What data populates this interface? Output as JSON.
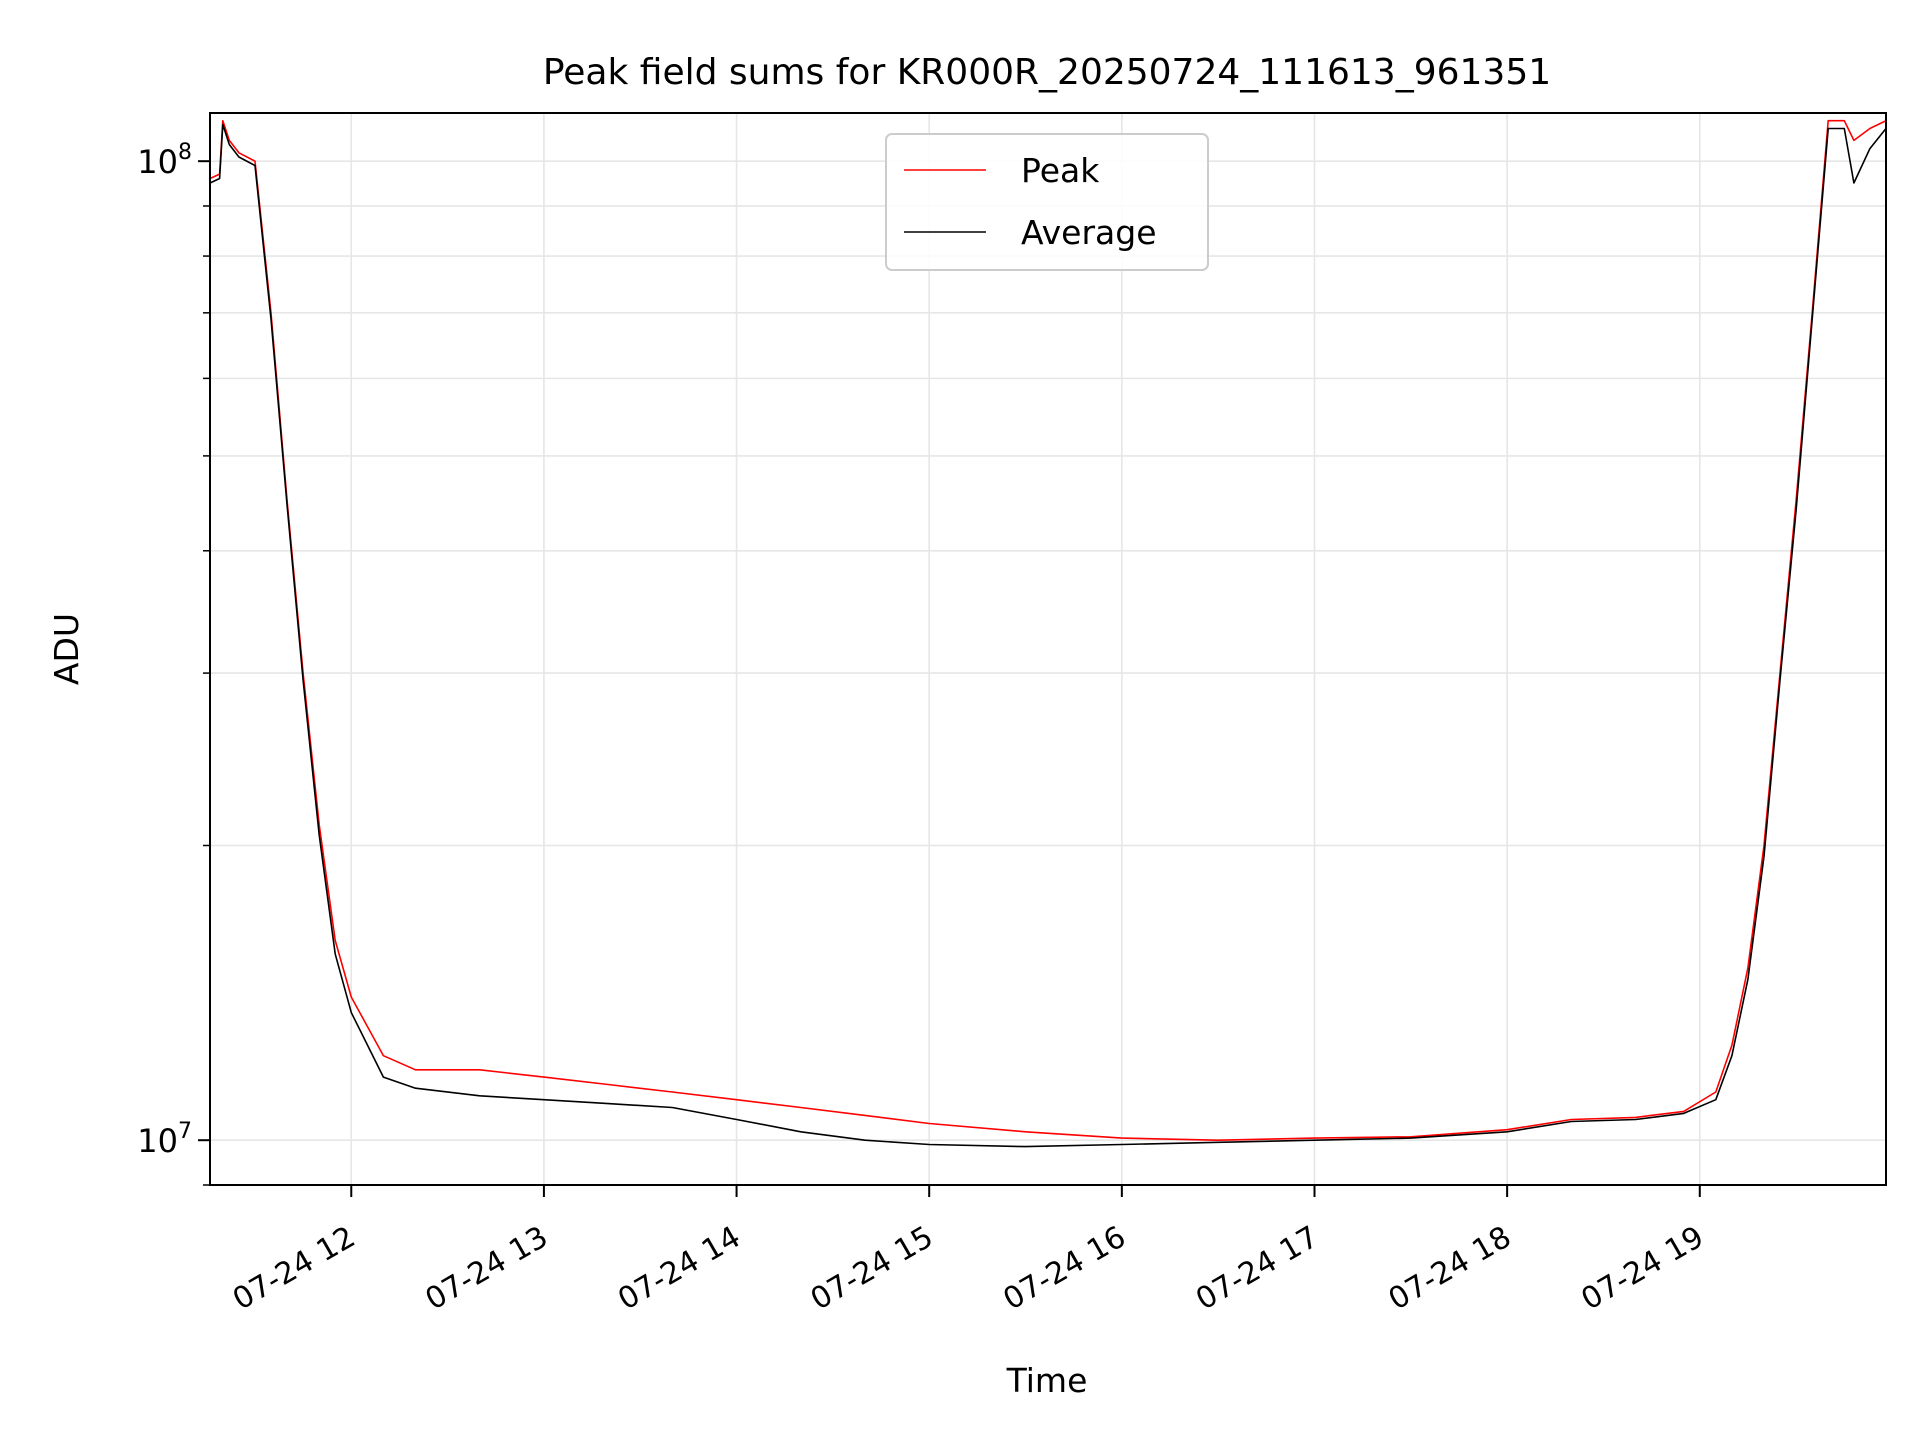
{
  "chart_data": {
    "type": "line",
    "title": "Peak field sums for KR000R_20250724_111613_961351",
    "xlabel": "Time",
    "ylabel": "ADU",
    "yscale": "log",
    "ylim": [
      9000000,
      112000000
    ],
    "xlim": [
      "2025-07-24 11:16",
      "2025-07-24 19:58"
    ],
    "grid": true,
    "legend_position": "top-center",
    "x_ticks": [
      "07-24 12",
      "07-24 13",
      "07-24 14",
      "07-24 15",
      "07-24 16",
      "07-24 17",
      "07-24 18",
      "07-24 19"
    ],
    "x_tick_times": [
      "2025-07-24 12:00",
      "2025-07-24 13:00",
      "2025-07-24 14:00",
      "2025-07-24 15:00",
      "2025-07-24 16:00",
      "2025-07-24 17:00",
      "2025-07-24 18:00",
      "2025-07-24 19:00"
    ],
    "y_ticks": [
      {
        "value": 10000000,
        "base": "10",
        "exp": "7"
      },
      {
        "value": 100000000,
        "base": "10",
        "exp": "8"
      }
    ],
    "x": [
      "2025-07-24 11:16",
      "2025-07-24 11:19",
      "2025-07-24 11:20",
      "2025-07-24 11:22",
      "2025-07-24 11:25",
      "2025-07-24 11:30",
      "2025-07-24 11:35",
      "2025-07-24 11:40",
      "2025-07-24 11:45",
      "2025-07-24 11:50",
      "2025-07-24 11:55",
      "2025-07-24 12:00",
      "2025-07-24 12:10",
      "2025-07-24 12:20",
      "2025-07-24 12:40",
      "2025-07-24 13:00",
      "2025-07-24 13:20",
      "2025-07-24 13:40",
      "2025-07-24 14:00",
      "2025-07-24 14:20",
      "2025-07-24 14:40",
      "2025-07-24 15:00",
      "2025-07-24 15:30",
      "2025-07-24 16:00",
      "2025-07-24 16:30",
      "2025-07-24 17:00",
      "2025-07-24 17:30",
      "2025-07-24 18:00",
      "2025-07-24 18:20",
      "2025-07-24 18:40",
      "2025-07-24 18:55",
      "2025-07-24 19:05",
      "2025-07-24 19:10",
      "2025-07-24 19:15",
      "2025-07-24 19:20",
      "2025-07-24 19:25",
      "2025-07-24 19:30",
      "2025-07-24 19:35",
      "2025-07-24 19:40",
      "2025-07-24 19:45",
      "2025-07-24 19:48",
      "2025-07-24 19:53",
      "2025-07-24 19:58"
    ],
    "series": [
      {
        "name": "Peak",
        "color": "#ff0000",
        "values": [
          96000000,
          97000000,
          110000000,
          105000000,
          102000000,
          100000000,
          70000000,
          45000000,
          30000000,
          21000000,
          16000000,
          14000000,
          12200000,
          11800000,
          11800000,
          11600000,
          11400000,
          11200000,
          11000000,
          10800000,
          10600000,
          10400000,
          10200000,
          10050000,
          10000000,
          10050000,
          10080000,
          10250000,
          10500000,
          10550000,
          10700000,
          11200000,
          12500000,
          15000000,
          20000000,
          30000000,
          45000000,
          70000000,
          110000000,
          110000000,
          105000000,
          108000000,
          110000000
        ]
      },
      {
        "name": "Average",
        "color": "#000000",
        "values": [
          95000000,
          96000000,
          109000000,
          104000000,
          101000000,
          99000000,
          69000000,
          44500000,
          29500000,
          20500000,
          15500000,
          13500000,
          11600000,
          11300000,
          11100000,
          11000000,
          10900000,
          10800000,
          10500000,
          10200000,
          10000000,
          9900000,
          9850000,
          9900000,
          9950000,
          10000000,
          10050000,
          10200000,
          10450000,
          10500000,
          10650000,
          11000000,
          12200000,
          14600000,
          19500000,
          29500000,
          44000000,
          69000000,
          108000000,
          108000000,
          95000000,
          103000000,
          108000000
        ]
      }
    ]
  }
}
